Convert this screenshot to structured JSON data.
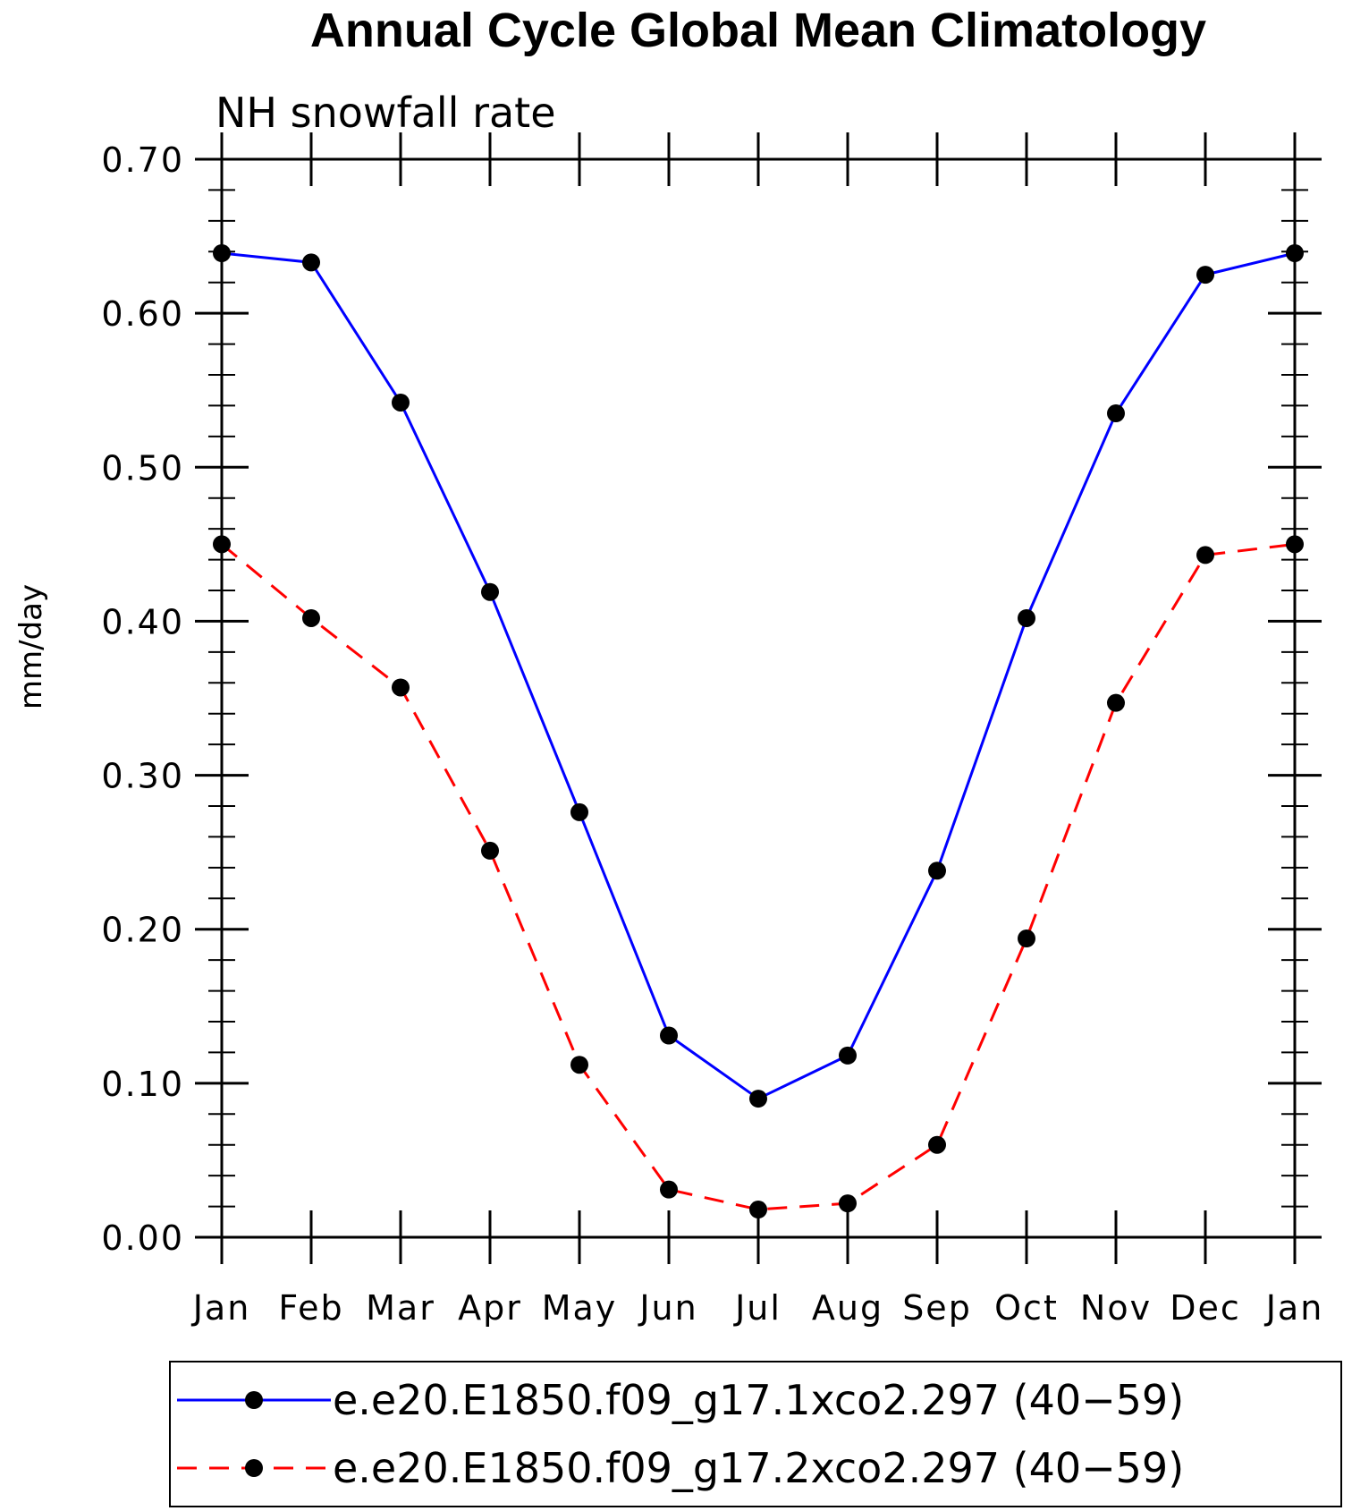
{
  "chart_data": {
    "type": "line",
    "title": "Annual Cycle Global Mean Climatology",
    "subtitle": "NH snowfall rate",
    "xlabel": "",
    "ylabel": "mm/day",
    "categories": [
      "Jan",
      "Feb",
      "Mar",
      "Apr",
      "May",
      "Jun",
      "Jul",
      "Aug",
      "Sep",
      "Oct",
      "Nov",
      "Dec",
      "Jan"
    ],
    "ylim": [
      0,
      0.7
    ],
    "yticks": [
      0.0,
      0.1,
      0.2,
      0.3,
      0.4,
      0.5,
      0.6,
      0.7
    ],
    "ytick_labels": [
      "0.00",
      "0.10",
      "0.20",
      "0.30",
      "0.40",
      "0.50",
      "0.60",
      "0.70"
    ],
    "grid": false,
    "legend_position": "bottom",
    "series": [
      {
        "name": "e.e20.E1850.f09_g17.1xco2.297 (40−59)",
        "color": "#0000ff",
        "line_style": "solid",
        "marker": "filled-circle",
        "values": [
          0.639,
          0.633,
          0.542,
          0.419,
          0.276,
          0.131,
          0.09,
          0.118,
          0.238,
          0.402,
          0.535,
          0.625,
          0.639
        ]
      },
      {
        "name": "e.e20.E1850.f09_g17.2xco2.297 (40−59)",
        "color": "#ff0000",
        "line_style": "dashed",
        "marker": "filled-circle",
        "values": [
          0.45,
          0.402,
          0.357,
          0.251,
          0.112,
          0.031,
          0.018,
          0.022,
          0.06,
          0.194,
          0.347,
          0.443,
          0.45
        ]
      }
    ]
  }
}
